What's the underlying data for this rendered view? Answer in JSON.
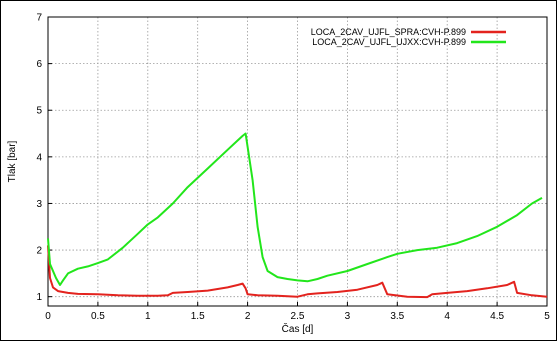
{
  "chart_data": {
    "type": "line",
    "xlabel": "Čas [d]",
    "ylabel": "Tlak [bar]",
    "xlim": [
      0,
      5
    ],
    "ylim": [
      0.8,
      7
    ],
    "xticks": [
      "0",
      "0.5",
      "1",
      "1.5",
      "2",
      "2.5",
      "3",
      "3.5",
      "4",
      "4.5",
      "5"
    ],
    "yticks": [
      "1",
      "2",
      "3",
      "4",
      "5",
      "6",
      "7"
    ],
    "grid": true,
    "legend_position": "top-right",
    "series": [
      {
        "name": "LOCA_2CAV_UJFL_SPRA:CVH-P.899",
        "color": "#e3231e",
        "x": [
          0,
          0.02,
          0.05,
          0.1,
          0.2,
          0.3,
          0.5,
          0.7,
          0.9,
          1.0,
          1.1,
          1.2,
          1.25,
          1.4,
          1.6,
          1.8,
          1.9,
          1.95,
          1.98,
          2.0,
          2.1,
          2.3,
          2.5,
          2.6,
          2.7,
          2.9,
          3.1,
          3.3,
          3.35,
          3.4,
          3.6,
          3.8,
          3.85,
          4.0,
          4.2,
          4.4,
          4.6,
          4.67,
          4.7,
          4.85,
          5.0
        ],
        "y": [
          2.1,
          1.4,
          1.2,
          1.12,
          1.08,
          1.06,
          1.05,
          1.03,
          1.02,
          1.02,
          1.02,
          1.03,
          1.08,
          1.1,
          1.13,
          1.2,
          1.25,
          1.28,
          1.18,
          1.05,
          1.03,
          1.02,
          1.0,
          1.05,
          1.07,
          1.1,
          1.15,
          1.25,
          1.3,
          1.05,
          1.0,
          0.99,
          1.05,
          1.08,
          1.12,
          1.18,
          1.25,
          1.32,
          1.08,
          1.03,
          1.0
        ]
      },
      {
        "name": "LOCA_2CAV_UJFL_UJXX:CVH-P.899",
        "color": "#22e61b",
        "x": [
          0,
          0.02,
          0.05,
          0.08,
          0.12,
          0.15,
          0.2,
          0.3,
          0.4,
          0.5,
          0.6,
          0.75,
          0.9,
          1.0,
          1.1,
          1.25,
          1.4,
          1.6,
          1.8,
          1.9,
          1.95,
          1.98,
          2.05,
          2.1,
          2.15,
          2.2,
          2.3,
          2.4,
          2.5,
          2.6,
          2.7,
          2.8,
          3.0,
          3.2,
          3.4,
          3.5,
          3.7,
          3.9,
          4.1,
          4.3,
          4.5,
          4.7,
          4.85,
          4.95
        ],
        "y": [
          2.25,
          1.7,
          1.55,
          1.4,
          1.25,
          1.35,
          1.5,
          1.6,
          1.65,
          1.72,
          1.8,
          2.05,
          2.35,
          2.55,
          2.7,
          3.0,
          3.35,
          3.75,
          4.15,
          4.35,
          4.45,
          4.5,
          3.5,
          2.5,
          1.85,
          1.55,
          1.42,
          1.38,
          1.35,
          1.33,
          1.38,
          1.45,
          1.55,
          1.7,
          1.85,
          1.92,
          2.0,
          2.05,
          2.15,
          2.3,
          2.5,
          2.75,
          3.0,
          3.12
        ]
      }
    ]
  }
}
